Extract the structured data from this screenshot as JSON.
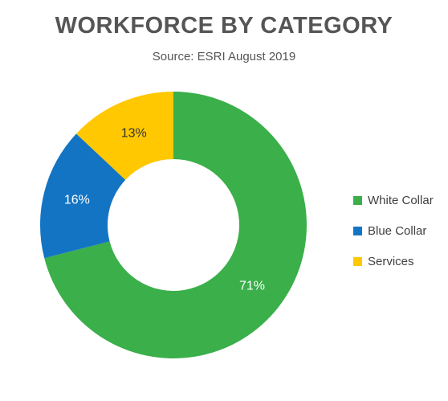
{
  "chart_data": {
    "type": "pie",
    "donut": true,
    "title": "WORKFORCE BY CATEGORY",
    "subtitle": "Source: ESRI August 2019",
    "categories": [
      "White Collar",
      "Blue Collar",
      "Services"
    ],
    "values": [
      71,
      16,
      13
    ],
    "labels": [
      "71%",
      "16%",
      "13%"
    ],
    "colors": [
      "#3aaf4a",
      "#1474c4",
      "#ffc800"
    ],
    "label_colors": [
      "#ffffff",
      "#ffffff",
      "#333333"
    ],
    "legend_position": "right"
  }
}
